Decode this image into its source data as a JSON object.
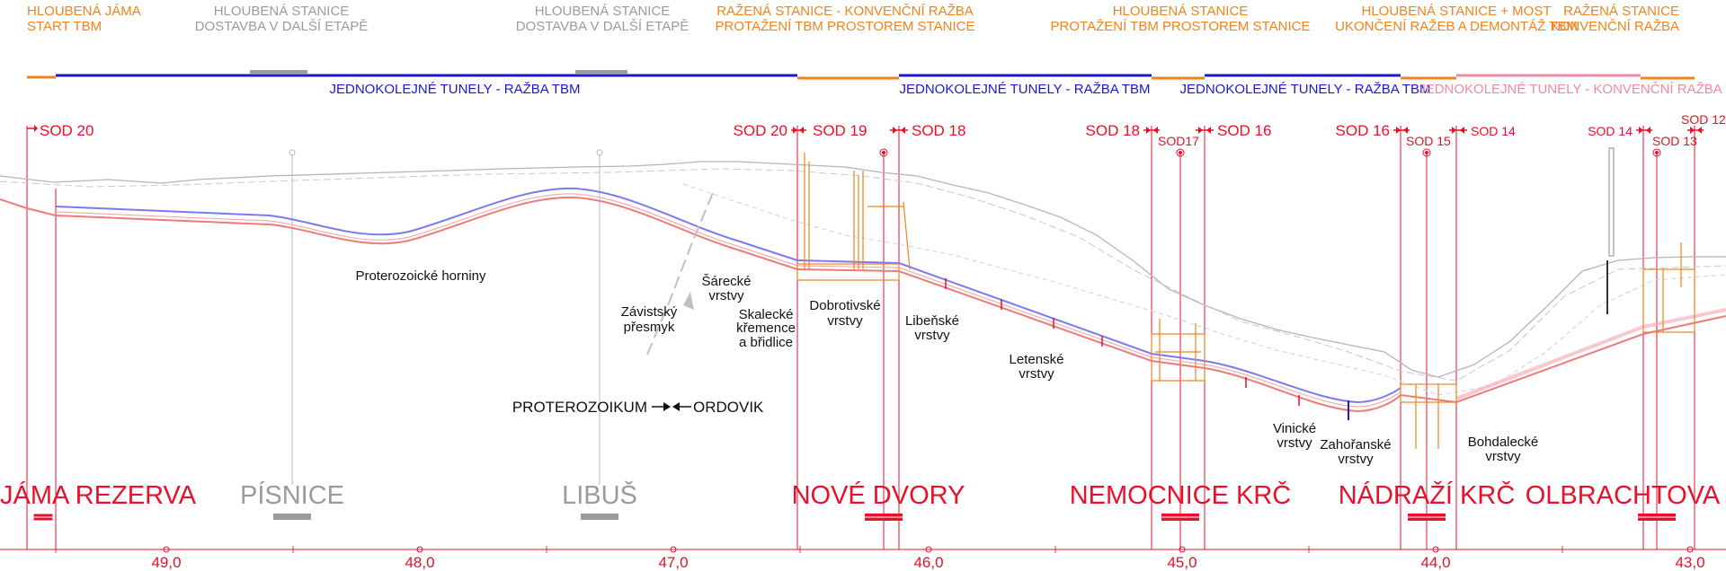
{
  "headers": [
    {
      "lines": [
        "HLOUBENÁ JÁMA",
        "START TBM"
      ],
      "color": "orange"
    },
    {
      "lines": [
        "HLOUBENÁ STANICE",
        "DOSTAVBA V DALŠÍ ETAPĚ"
      ],
      "color": "gray"
    },
    {
      "lines": [
        "HLOUBENÁ STANICE",
        "DOSTAVBA V DALŠÍ ETAPĚ"
      ],
      "color": "gray"
    },
    {
      "lines": [
        "RAŽENÁ STANICE - KONVENČNÍ RAŽBA",
        "PROTAŽENÍ TBM PROSTOREM STANICE"
      ],
      "color": "orange"
    },
    {
      "lines": [
        "HLOUBENÁ STANICE",
        "PROTAŽENÍ TBM PROSTOREM STANICE"
      ],
      "color": "orange"
    },
    {
      "lines": [
        "HLOUBENÁ STANICE + MOST",
        "UKONČENÍ RAŽEB A DEMONTÁŽ TBM"
      ],
      "color": "orange"
    },
    {
      "lines": [
        "RAŽENÁ STANICE",
        "KONVENČNÍ RAŽBA"
      ],
      "color": "orange"
    }
  ],
  "tunnel_labels": [
    {
      "text": "JEDNOKOLEJNÉ TUNELY - RAŽBA TBM",
      "color": "blue"
    },
    {
      "text": "JEDNOKOLEJNÉ TUNELY - RAŽBA TBM",
      "color": "blue"
    },
    {
      "text": "JEDNOKOLEJNÉ TUNELY - RAŽBA TBM",
      "color": "blue"
    },
    {
      "text": "JEDNOKOLEJNÉ TUNELY - KONVENČNÍ RAŽBA",
      "color": "pink"
    }
  ],
  "sod_labels": [
    "SOD 20",
    "SOD 20",
    "SOD 19",
    "SOD 18",
    "SOD 18",
    "SOD17",
    "SOD 16",
    "SOD 16",
    "SOD 15",
    "SOD 14",
    "SOD 14",
    "SOD 13",
    "SOD 12"
  ],
  "geology": [
    {
      "lines": [
        "Proterozoické horniny"
      ]
    },
    {
      "lines": [
        "Šárecké",
        "vrstvy"
      ]
    },
    {
      "lines": [
        "Závistský",
        "přesmyk"
      ]
    },
    {
      "lines": [
        "Skalecké",
        "křemence",
        "a břidlice"
      ]
    },
    {
      "lines": [
        "Dobrotivské",
        "vrstvy"
      ]
    },
    {
      "lines": [
        "Libeňské",
        "vrstvy"
      ]
    },
    {
      "lines": [
        "Letenské",
        "vrstvy"
      ]
    },
    {
      "lines": [
        "Vinické",
        "vrstvy"
      ]
    },
    {
      "lines": [
        "Zahořanské",
        "vrstvy"
      ]
    },
    {
      "lines": [
        "Bohdalecké",
        "vrstvy"
      ]
    }
  ],
  "boundary": {
    "left": "PROTEROZOIKUM",
    "right": "ORDOVIK"
  },
  "stations": [
    {
      "name": "JÁMA REZERVA",
      "status": "active"
    },
    {
      "name": "PÍSNICE",
      "status": "future"
    },
    {
      "name": "LIBUŠ",
      "status": "future"
    },
    {
      "name": "NOVÉ DVORY",
      "status": "active"
    },
    {
      "name": "NEMOCNICE KRČ",
      "status": "active"
    },
    {
      "name": "NÁDRAŽÍ KRČ",
      "status": "active"
    },
    {
      "name": "OLBRACHTOVA",
      "status": "active"
    }
  ],
  "chainage": [
    "49,0",
    "48,0",
    "47,0",
    "46,0",
    "45,0",
    "44,0",
    "43,0"
  ],
  "colors": {
    "orange": "#f0831e",
    "gray": "#9b9b9b",
    "blue": "#1a1ad0",
    "pink": "#f08aa0",
    "red": "#e8102a",
    "tunnel_blue": "#7a7af0",
    "tunnel_red": "#f07a7a"
  }
}
